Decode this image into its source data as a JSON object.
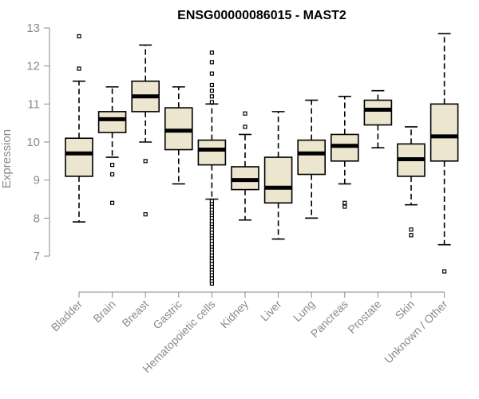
{
  "chart_data": {
    "type": "box",
    "title": "ENSG00000086015 - MAST2",
    "xlabel": "",
    "ylabel": "Expression",
    "ylim": [
      6.0,
      13.2
    ],
    "yticks": [
      7,
      8,
      9,
      10,
      11,
      12,
      13
    ],
    "grid": false,
    "box_fill": "#ede6ce",
    "box_stroke": "#000000",
    "categories": [
      "Bladder",
      "Brain",
      "Breast",
      "Gastric",
      "Hematopoietic cells",
      "Kidney",
      "Liver",
      "Lung",
      "Pancreas",
      "Prostate",
      "Skin",
      "Unknown / Other"
    ],
    "boxes": [
      {
        "category": "Bladder",
        "whisker_low": 7.9,
        "q1": 9.1,
        "median": 9.7,
        "q3": 10.1,
        "whisker_high": 11.6,
        "outliers": [
          11.93,
          12.78
        ]
      },
      {
        "category": "Brain",
        "whisker_low": 9.6,
        "q1": 10.25,
        "median": 10.6,
        "q3": 10.8,
        "whisker_high": 11.45,
        "outliers": [
          8.4,
          9.15,
          9.4
        ]
      },
      {
        "category": "Breast",
        "whisker_low": 10.0,
        "q1": 10.8,
        "median": 11.2,
        "q3": 11.6,
        "whisker_high": 12.55,
        "outliers": [
          8.1,
          9.5
        ]
      },
      {
        "category": "Gastric",
        "whisker_low": 8.9,
        "q1": 9.8,
        "median": 10.3,
        "q3": 10.9,
        "whisker_high": 11.45,
        "outliers": []
      },
      {
        "category": "Hematopoietic cells",
        "whisker_low": 8.5,
        "q1": 9.4,
        "median": 9.8,
        "q3": 10.05,
        "whisker_high": 11.0,
        "outliers": [
          6.28,
          6.35,
          6.42,
          6.5,
          6.58,
          6.65,
          6.72,
          6.8,
          6.88,
          6.95,
          7.02,
          7.1,
          7.18,
          7.25,
          7.32,
          7.4,
          7.48,
          7.55,
          7.62,
          7.7,
          7.78,
          7.85,
          7.92,
          8.0,
          8.08,
          8.15,
          8.22,
          8.3,
          8.38,
          8.45,
          11.05,
          11.2,
          11.35,
          11.5,
          11.8,
          12.1,
          12.35
        ]
      },
      {
        "category": "Kidney",
        "whisker_low": 7.95,
        "q1": 8.75,
        "median": 9.0,
        "q3": 9.35,
        "whisker_high": 10.2,
        "outliers": [
          10.4,
          10.75
        ]
      },
      {
        "category": "Liver",
        "whisker_low": 7.45,
        "q1": 8.4,
        "median": 8.8,
        "q3": 9.6,
        "whisker_high": 10.8,
        "outliers": []
      },
      {
        "category": "Lung",
        "whisker_low": 8.0,
        "q1": 9.15,
        "median": 9.7,
        "q3": 10.05,
        "whisker_high": 11.1,
        "outliers": []
      },
      {
        "category": "Pancreas",
        "whisker_low": 8.9,
        "q1": 9.5,
        "median": 9.9,
        "q3": 10.2,
        "whisker_high": 11.2,
        "outliers": [
          8.3,
          8.4
        ]
      },
      {
        "category": "Prostate",
        "whisker_low": 9.85,
        "q1": 10.45,
        "median": 10.85,
        "q3": 11.1,
        "whisker_high": 11.35,
        "outliers": []
      },
      {
        "category": "Skin",
        "whisker_low": 8.35,
        "q1": 9.1,
        "median": 9.55,
        "q3": 9.95,
        "whisker_high": 10.4,
        "outliers": [
          7.55,
          7.7
        ]
      },
      {
        "category": "Unknown / Other",
        "whisker_low": 7.3,
        "q1": 9.5,
        "median": 10.15,
        "q3": 11.0,
        "whisker_high": 12.85,
        "outliers": [
          6.6
        ]
      }
    ]
  }
}
